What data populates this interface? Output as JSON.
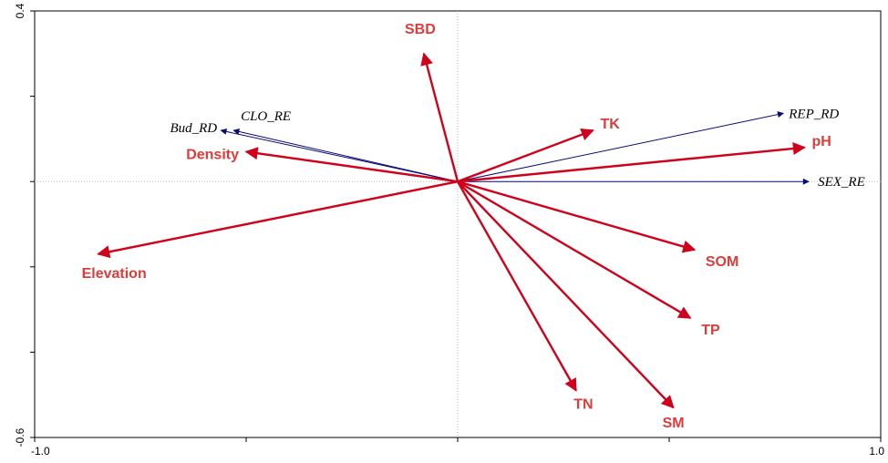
{
  "chart_data": {
    "type": "scatter",
    "subtype": "ordination-biplot",
    "title": "",
    "xlabel": "",
    "ylabel": "",
    "xlim": [
      -1.0,
      1.0
    ],
    "ylim": [
      -0.6,
      0.4
    ],
    "x_ticks": [
      -1.0,
      -0.5,
      0.0,
      0.5,
      1.0
    ],
    "x_tick_labels": [
      "-1.0",
      "",
      "",
      "",
      "1.0"
    ],
    "y_ticks": [
      -0.6,
      -0.4,
      -0.2,
      0.0,
      0.2,
      0.4
    ],
    "y_tick_labels": [
      "-0.6",
      "",
      "",
      "",
      "",
      "0.4"
    ],
    "reference_lines": {
      "x": 0.0,
      "y": 0.0,
      "style": "dotted"
    },
    "grid": false,
    "colors": {
      "environmental": "#d0021b",
      "environmental_label": "#e03a3a",
      "response": "#0a0a78"
    },
    "environmental_vectors": [
      {
        "label": "SBD",
        "x": -0.08,
        "y": 0.3
      },
      {
        "label": "TK",
        "x": 0.32,
        "y": 0.12
      },
      {
        "label": "pH",
        "x": 0.82,
        "y": 0.08
      },
      {
        "label": "Density",
        "x": -0.5,
        "y": 0.07
      },
      {
        "label": "Elevation",
        "x": -0.85,
        "y": -0.17
      },
      {
        "label": "SOM",
        "x": 0.56,
        "y": -0.16
      },
      {
        "label": "TP",
        "x": 0.55,
        "y": -0.32
      },
      {
        "label": "TN",
        "x": 0.28,
        "y": -0.49
      },
      {
        "label": "SM",
        "x": 0.51,
        "y": -0.53
      }
    ],
    "response_vectors": [
      {
        "label": "CLO_RE",
        "x": -0.53,
        "y": 0.12
      },
      {
        "label": "Bud_RD",
        "x": -0.56,
        "y": 0.12
      },
      {
        "label": "REP_RD",
        "x": 0.77,
        "y": 0.16
      },
      {
        "label": "SEX_RE",
        "x": 0.83,
        "y": 0.0
      }
    ]
  }
}
